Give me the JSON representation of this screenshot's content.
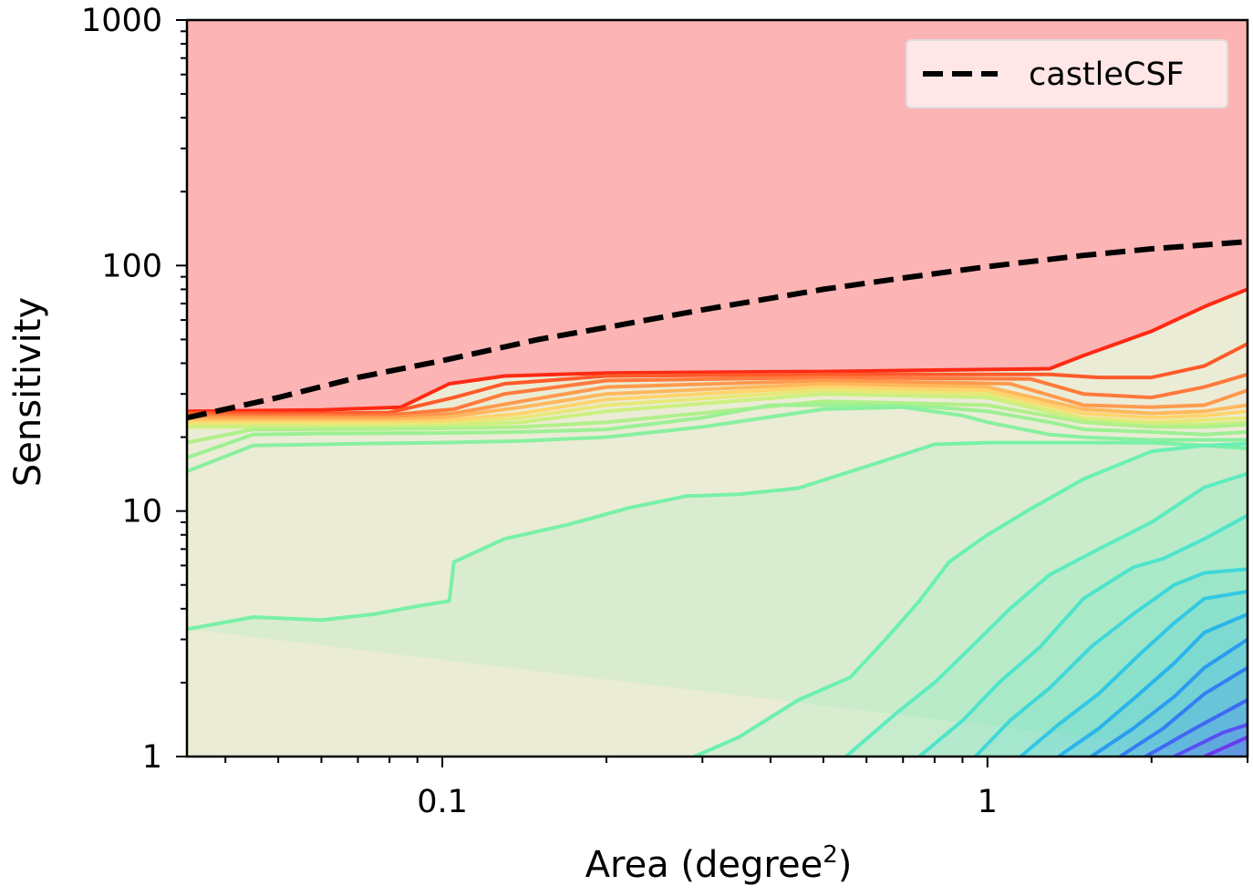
{
  "chart_data": {
    "type": "line",
    "title": "",
    "xlabel_main": "Area (degree",
    "xlabel_sup": "2",
    "xlabel_close": ")",
    "ylabel": "Sensitivity",
    "xscale": "log",
    "yscale": "log",
    "xlim": [
      0.034,
      3.0
    ],
    "ylim": [
      1,
      1000
    ],
    "xticks": [
      {
        "value": 0.1,
        "label": "0.1"
      },
      {
        "value": 1,
        "label": "1"
      }
    ],
    "yticks": [
      {
        "value": 1,
        "label": "1"
      },
      {
        "value": 10,
        "label": "10"
      },
      {
        "value": 100,
        "label": "100"
      },
      {
        "value": 1000,
        "label": "1000"
      }
    ],
    "grid": false,
    "legend": {
      "placement": "top-right",
      "entries": [
        {
          "label": "castleCSF",
          "style": "dashed",
          "color": "#000000"
        }
      ]
    },
    "background_color": "#fcb4b4",
    "castleCSF": {
      "x": [
        0.034,
        0.05,
        0.07,
        0.1,
        0.15,
        0.2,
        0.3,
        0.5,
        0.7,
        1.0,
        1.5,
        2.0,
        3.0
      ],
      "y": [
        24,
        29,
        35,
        41,
        50,
        56,
        66,
        80,
        89,
        99,
        110,
        117,
        125
      ]
    },
    "contours": [
      {
        "color": "#ff2a14",
        "x": [
          0.034,
          0.06,
          0.084,
          0.103,
          0.13,
          0.2,
          0.5,
          1.3,
          1.5,
          2.0,
          2.5,
          3.0
        ],
        "y": [
          25.5,
          25.8,
          26.5,
          33,
          35.5,
          36.5,
          37,
          38,
          43,
          54,
          68,
          80
        ]
      },
      {
        "color": "#ff5a2a",
        "x": [
          0.034,
          0.06,
          0.08,
          0.105,
          0.13,
          0.2,
          0.5,
          1.3,
          1.6,
          2.0,
          2.5,
          3.0
        ],
        "y": [
          25,
          25,
          25.2,
          29,
          33,
          35.5,
          36,
          36,
          35,
          35,
          39,
          48
        ]
      },
      {
        "color": "#ff7a3c",
        "x": [
          0.034,
          0.06,
          0.08,
          0.105,
          0.13,
          0.2,
          0.5,
          1.2,
          1.5,
          2.0,
          2.5,
          3.0
        ],
        "y": [
          24.5,
          24.5,
          24.6,
          26,
          30,
          34,
          35,
          34.5,
          30,
          29,
          32,
          36
        ]
      },
      {
        "color": "#ff9a4e",
        "x": [
          0.034,
          0.06,
          0.08,
          0.105,
          0.14,
          0.2,
          0.5,
          1.1,
          1.5,
          2.0,
          2.5,
          3.0
        ],
        "y": [
          24,
          24,
          24,
          25,
          28,
          32,
          34,
          33,
          27,
          26.5,
          27,
          31
        ]
      },
      {
        "color": "#ffb85c",
        "x": [
          0.034,
          0.06,
          0.08,
          0.1,
          0.14,
          0.2,
          0.5,
          1.0,
          1.5,
          2.0,
          2.5,
          3.0
        ],
        "y": [
          23.5,
          23.5,
          23.5,
          24,
          26.5,
          30,
          33,
          32,
          26,
          25,
          25.5,
          27
        ]
      },
      {
        "color": "#ffd46c",
        "x": [
          0.034,
          0.06,
          0.08,
          0.1,
          0.14,
          0.2,
          0.5,
          1.0,
          1.5,
          2.0,
          2.5,
          3.0
        ],
        "y": [
          23,
          23,
          23,
          23.3,
          25,
          28.5,
          32,
          31,
          25,
          24,
          24.5,
          25.5
        ]
      },
      {
        "color": "#e8e878",
        "x": [
          0.034,
          0.06,
          0.08,
          0.1,
          0.14,
          0.2,
          0.5,
          1.0,
          1.5,
          2.0,
          2.5,
          3.0
        ],
        "y": [
          22.5,
          22.5,
          22.5,
          22.7,
          24,
          27,
          31,
          30,
          24,
          23,
          23.5,
          24
        ]
      },
      {
        "color": "#ccf080",
        "x": [
          0.034,
          0.06,
          0.08,
          0.1,
          0.14,
          0.2,
          0.5,
          1.0,
          1.5,
          2.0,
          2.5,
          3.0
        ],
        "y": [
          22,
          22,
          22,
          22.2,
          23,
          25.5,
          30,
          29,
          23.5,
          22.5,
          22.5,
          23
        ]
      },
      {
        "color": "#b0f08a",
        "x": [
          0.034,
          0.045,
          0.06,
          0.1,
          0.14,
          0.2,
          0.5,
          1.0,
          1.5,
          2.0,
          2.5,
          3.0
        ],
        "y": [
          19,
          21.5,
          21.5,
          21.7,
          22,
          23,
          28,
          27,
          23,
          22,
          22,
          22.5
        ]
      },
      {
        "color": "#9cf094",
        "x": [
          0.034,
          0.045,
          0.06,
          0.1,
          0.14,
          0.2,
          0.3,
          0.4,
          0.6,
          0.8,
          1.0,
          1.3,
          1.5,
          2.0,
          2.5,
          3.0
        ],
        "y": [
          16.5,
          20.5,
          20.7,
          20.8,
          21,
          21.5,
          24,
          27,
          27,
          26.5,
          25.5,
          23,
          21.5,
          21,
          20.5,
          21
        ]
      },
      {
        "color": "#88f0a0",
        "x": [
          0.034,
          0.045,
          0.07,
          0.1,
          0.14,
          0.2,
          0.3,
          0.5,
          0.7,
          0.9,
          1.0,
          1.3,
          1.5,
          2.0,
          2.5,
          3.0
        ],
        "y": [
          14.5,
          18.5,
          18.8,
          19,
          19.3,
          20,
          22,
          26,
          26.5,
          24.5,
          23,
          20.5,
          20,
          19.5,
          19.5,
          19.5
        ]
      },
      {
        "color": "#78f0a8",
        "x": [
          0.034,
          0.045,
          0.06,
          0.075,
          0.09,
          0.103,
          0.105,
          0.13,
          0.17,
          0.22,
          0.28,
          0.35,
          0.45,
          0.6,
          0.8,
          1.0,
          1.5,
          2.0,
          2.5,
          3.0
        ],
        "y": [
          3.3,
          3.7,
          3.6,
          3.8,
          4.1,
          4.3,
          6.2,
          7.7,
          8.8,
          10.3,
          11.5,
          11.7,
          12.4,
          15.2,
          18.7,
          19,
          19,
          19,
          18.5,
          18
        ]
      },
      {
        "color": "#6af0b4",
        "x": [
          0.29,
          0.35,
          0.45,
          0.56,
          0.65,
          0.75,
          0.85,
          1.0,
          1.2,
          1.5,
          2.0,
          2.5,
          3.0
        ],
        "y": [
          1,
          1.2,
          1.7,
          2.1,
          3.0,
          4.3,
          6.2,
          8.0,
          10.2,
          13.5,
          17.5,
          18.5,
          18.8
        ]
      },
      {
        "color": "#5cecc0",
        "x": [
          0.55,
          0.68,
          0.8,
          0.95,
          1.1,
          1.3,
          1.6,
          2.0,
          2.5,
          3.0
        ],
        "y": [
          1,
          1.5,
          2.0,
          2.9,
          4.0,
          5.5,
          7.0,
          9.0,
          12.5,
          14.2
        ]
      },
      {
        "color": "#4ee4cc",
        "x": [
          0.75,
          0.9,
          1.05,
          1.25,
          1.5,
          1.85,
          2.1,
          2.5,
          3.0
        ],
        "y": [
          1,
          1.4,
          2.0,
          2.8,
          4.4,
          5.9,
          6.4,
          7.7,
          9.6
        ]
      },
      {
        "color": "#40d8d8",
        "x": [
          0.95,
          1.1,
          1.3,
          1.55,
          1.85,
          2.2,
          2.5,
          3.0
        ],
        "y": [
          1,
          1.4,
          1.9,
          2.8,
          3.8,
          5.0,
          5.6,
          5.8
        ]
      },
      {
        "color": "#32c8e4",
        "x": [
          1.15,
          1.35,
          1.6,
          1.9,
          2.2,
          2.5,
          3.0
        ],
        "y": [
          1,
          1.35,
          1.8,
          2.6,
          3.5,
          4.4,
          4.7
        ]
      },
      {
        "color": "#2ab4ec",
        "x": [
          1.35,
          1.6,
          1.9,
          2.2,
          2.5,
          3.0
        ],
        "y": [
          1,
          1.3,
          1.8,
          2.4,
          3.2,
          3.8
        ]
      },
      {
        "color": "#2a9cf0",
        "x": [
          1.55,
          1.85,
          2.2,
          2.5,
          3.0
        ],
        "y": [
          1,
          1.3,
          1.75,
          2.3,
          3.0
        ]
      },
      {
        "color": "#3080f4",
        "x": [
          1.75,
          2.1,
          2.5,
          3.0
        ],
        "y": [
          1,
          1.3,
          1.8,
          2.3
        ]
      },
      {
        "color": "#4068f4",
        "x": [
          1.95,
          2.4,
          3.0
        ],
        "y": [
          1,
          1.3,
          1.7
        ]
      },
      {
        "color": "#5850f4",
        "x": [
          2.2,
          2.7,
          3.0
        ],
        "y": [
          1,
          1.25,
          1.35
        ]
      },
      {
        "color": "#6c38f0",
        "x": [
          2.5,
          3.0
        ],
        "y": [
          1,
          1.2
        ]
      }
    ]
  }
}
